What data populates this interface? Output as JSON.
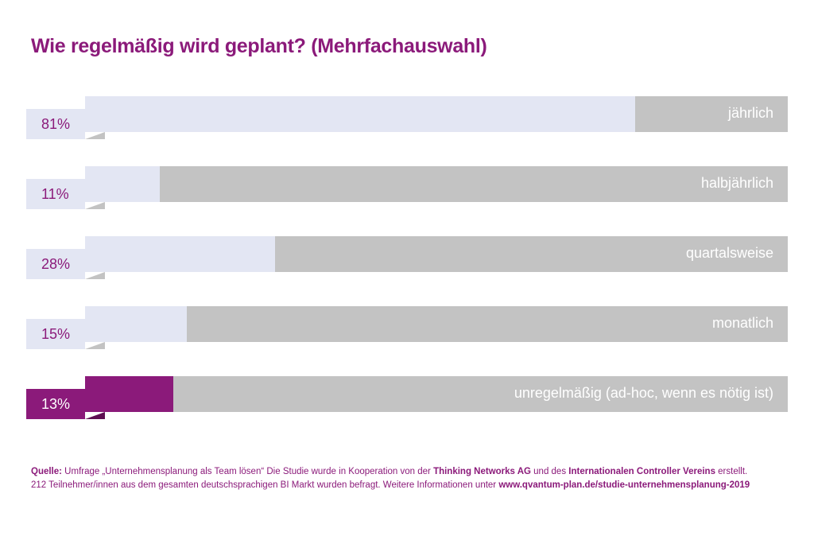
{
  "chart_data": {
    "type": "bar",
    "title": "Wie regelmäßig wird geplant? (Mehrfachauswahl)",
    "categories": [
      "jährlich",
      "halbjährlich",
      "quartalsweise",
      "monatlich",
      "unregelmäßig (ad-hoc, wenn es nötig ist)"
    ],
    "values": [
      81,
      11,
      28,
      15,
      13
    ],
    "labels": [
      "81%",
      "11%",
      "28%",
      "15%",
      "13%"
    ],
    "highlight": [
      false,
      false,
      false,
      false,
      true
    ],
    "unit": "%",
    "colors": {
      "fill": "#e3e6f3",
      "track": "#c3c3c3",
      "highlight": "#8b1a7a"
    }
  },
  "source": {
    "label": "Quelle:",
    "t1": " Umfrage „Unternehmensplanung als Team lösen“ Die Studie wurde in Kooperation von der ",
    "b1": "Thinking Networks AG",
    "t2": " und des ",
    "b2": "Internationalen Controller Vereins",
    "t3": " erstellt.",
    "t4": "212 Teilnehmer/innen aus dem gesamten deutschsprachigen BI Markt wurden befragt. Weitere Informationen unter ",
    "link": "www.qvantum-plan.de/studie-unternehmensplanung-2019"
  }
}
